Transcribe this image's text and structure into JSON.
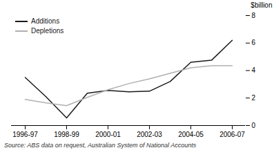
{
  "chart_data": {
    "type": "line",
    "categories": [
      "1996-97",
      null,
      "1998-99",
      null,
      "2000-01",
      null,
      "2002-03",
      null,
      "2004-05",
      null,
      "2006-07"
    ],
    "series": [
      {
        "name": "Additions",
        "color": "#1a1a1a",
        "values": [
          3.5,
          2.1,
          0.55,
          2.35,
          2.55,
          2.45,
          2.5,
          3.2,
          4.6,
          4.75,
          6.2
        ]
      },
      {
        "name": "Depletions",
        "color": "#b0b0b0",
        "values": [
          1.9,
          1.65,
          1.45,
          2.05,
          2.6,
          3.05,
          3.4,
          3.8,
          4.2,
          4.35,
          4.35
        ]
      }
    ],
    "ylabel": "$billion",
    "ylim": [
      0,
      8
    ],
    "yticks": [
      0,
      2,
      4,
      6,
      8
    ],
    "legend": "upper left",
    "caption": "Source: ABS data on request, Australian System of National Accounts"
  }
}
